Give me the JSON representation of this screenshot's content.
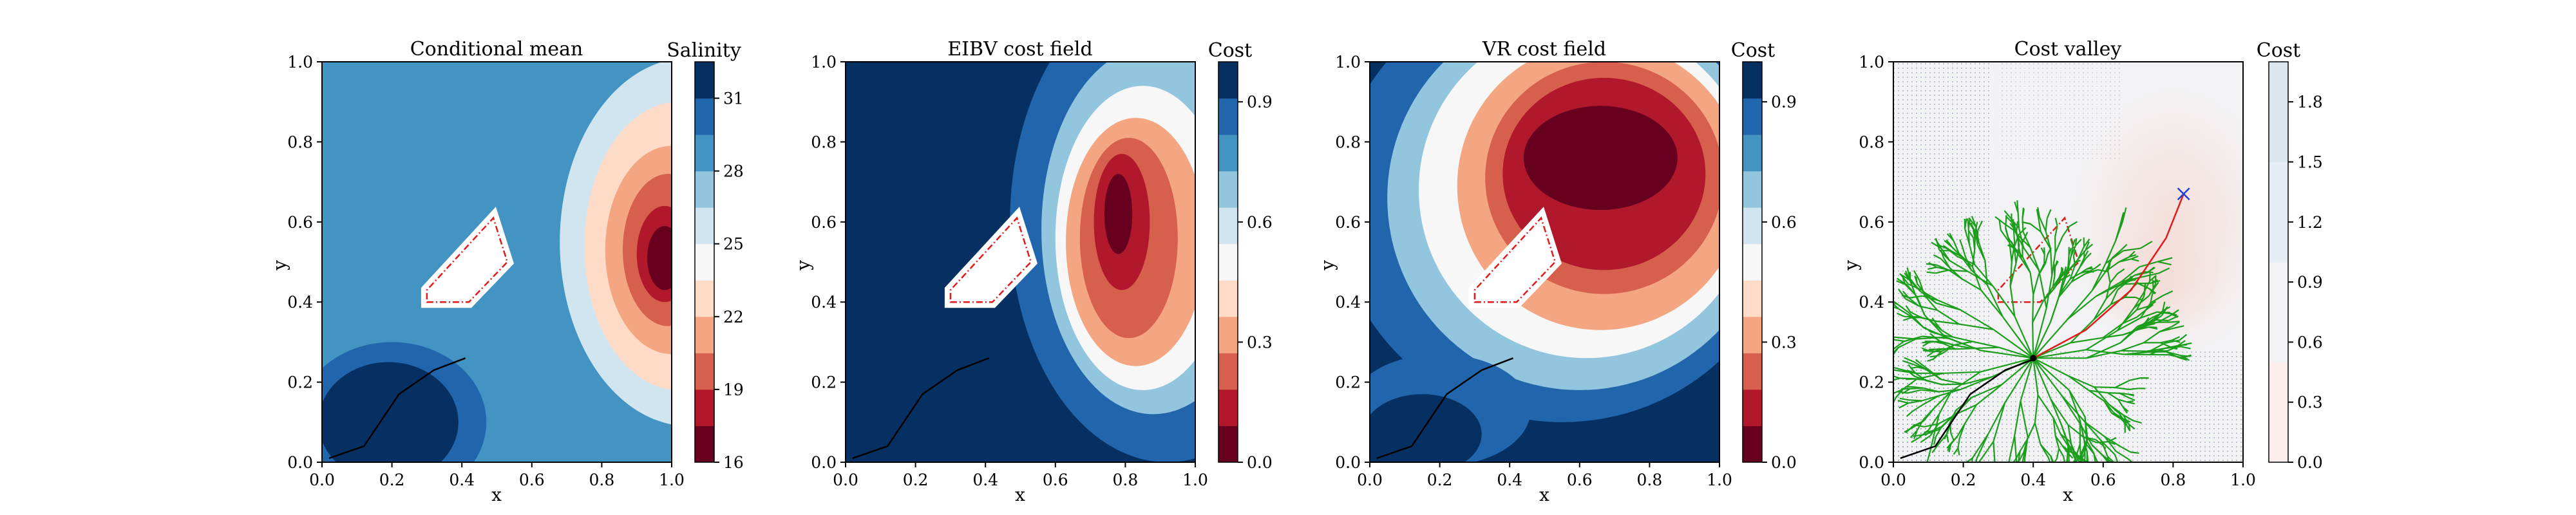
{
  "chart_data": [
    {
      "type": "heatmap",
      "title": "Conditional mean",
      "xlabel": "x",
      "ylabel": "y",
      "xlim": [
        0.0,
        1.0
      ],
      "ylim": [
        0.0,
        1.0
      ],
      "x_ticks": [
        "0.0",
        "0.2",
        "0.4",
        "0.6",
        "0.8",
        "1.0"
      ],
      "y_ticks": [
        "0.0",
        "0.2",
        "0.4",
        "0.6",
        "0.8",
        "1.0"
      ],
      "colorbar": {
        "label": "Salinity",
        "range": [
          16,
          32.5
        ],
        "ticks": [
          {
            "value": 16,
            "label": "16"
          },
          {
            "value": 19,
            "label": "19"
          },
          {
            "value": 22,
            "label": "22"
          },
          {
            "value": 25,
            "label": "25"
          },
          {
            "value": 28,
            "label": "28"
          },
          {
            "value": 31,
            "label": "31"
          }
        ],
        "colors": [
          "#67001f",
          "#b2182b",
          "#d6604d",
          "#f4a582",
          "#fddbc7",
          "#f7f7f7",
          "#d1e5f0",
          "#92c5de",
          "#4393c3",
          "#2166ac",
          "#053061"
        ]
      },
      "levels": [
        {
          "color": "#4393c3",
          "description": "background"
        },
        {
          "color": "#d1e5f0",
          "center": [
            1.05,
            0.55
          ],
          "radii": [
            0.37,
            0.46
          ]
        },
        {
          "color": "#fddbc7",
          "center": [
            1.02,
            0.54
          ],
          "radii": [
            0.27,
            0.36
          ]
        },
        {
          "color": "#f4a582",
          "center": [
            1.0,
            0.53
          ],
          "radii": [
            0.19,
            0.26
          ]
        },
        {
          "color": "#d6604d",
          "center": [
            0.99,
            0.53
          ],
          "radii": [
            0.13,
            0.19
          ]
        },
        {
          "color": "#b2182b",
          "center": [
            0.98,
            0.52
          ],
          "radii": [
            0.08,
            0.12
          ]
        },
        {
          "color": "#67001f",
          "center": [
            0.98,
            0.51
          ],
          "radii": [
            0.05,
            0.08
          ]
        }
      ],
      "path": [
        [
          0.02,
          0.01
        ],
        [
          0.12,
          0.04
        ],
        [
          0.22,
          0.17
        ],
        [
          0.32,
          0.23
        ],
        [
          0.41,
          0.26
        ]
      ]
    },
    {
      "type": "heatmap",
      "title": "EIBV cost field",
      "xlabel": "x",
      "ylabel": "y",
      "xlim": [
        0.0,
        1.0
      ],
      "ylim": [
        0.0,
        1.0
      ],
      "x_ticks": [
        "0.0",
        "0.2",
        "0.4",
        "0.6",
        "0.8",
        "1.0"
      ],
      "y_ticks": [
        "0.0",
        "0.2",
        "0.4",
        "0.6",
        "0.8",
        "1.0"
      ],
      "colorbar": {
        "label": "Cost",
        "range": [
          0.0,
          1.0
        ],
        "ticks": [
          {
            "value": 0.0,
            "label": "0.0"
          },
          {
            "value": 0.3,
            "label": "0.3"
          },
          {
            "value": 0.6,
            "label": "0.6"
          },
          {
            "value": 0.9,
            "label": "0.9"
          }
        ],
        "colors": [
          "#67001f",
          "#b2182b",
          "#d6604d",
          "#f4a582",
          "#fddbc7",
          "#f7f7f7",
          "#d1e5f0",
          "#92c5de",
          "#4393c3",
          "#2166ac",
          "#053061"
        ]
      },
      "levels": [
        {
          "color": "#053061",
          "description": "background"
        },
        {
          "color": "#2166ac",
          "center": [
            0.92,
            0.6
          ],
          "radii": [
            0.45,
            0.6
          ]
        },
        {
          "color": "#92c5de",
          "center": [
            0.88,
            0.58
          ],
          "radii": [
            0.32,
            0.46
          ]
        },
        {
          "color": "#f7f7f7",
          "center": [
            0.85,
            0.56
          ],
          "radii": [
            0.25,
            0.38
          ]
        },
        {
          "color": "#f4a582",
          "center": [
            0.83,
            0.55
          ],
          "radii": [
            0.2,
            0.31
          ]
        },
        {
          "color": "#d6604d",
          "center": [
            0.81,
            0.56
          ],
          "radii": [
            0.14,
            0.25
          ]
        },
        {
          "color": "#b2182b",
          "center": [
            0.79,
            0.6
          ],
          "radii": [
            0.08,
            0.17
          ]
        },
        {
          "color": "#67001f",
          "center": [
            0.78,
            0.62
          ],
          "radii": [
            0.04,
            0.1
          ]
        }
      ],
      "path": [
        [
          0.02,
          0.01
        ],
        [
          0.12,
          0.04
        ],
        [
          0.22,
          0.17
        ],
        [
          0.32,
          0.23
        ],
        [
          0.41,
          0.26
        ]
      ]
    },
    {
      "type": "heatmap",
      "title": "VR cost field",
      "xlabel": "x",
      "ylabel": "y",
      "xlim": [
        0.0,
        1.0
      ],
      "ylim": [
        0.0,
        1.0
      ],
      "x_ticks": [
        "0.0",
        "0.2",
        "0.4",
        "0.6",
        "0.8",
        "1.0"
      ],
      "y_ticks": [
        "0.0",
        "0.2",
        "0.4",
        "0.6",
        "0.8",
        "1.0"
      ],
      "colorbar": {
        "label": "Cost",
        "range": [
          0.0,
          1.0
        ],
        "ticks": [
          {
            "value": 0.0,
            "label": "0.0"
          },
          {
            "value": 0.3,
            "label": "0.3"
          },
          {
            "value": 0.6,
            "label": "0.6"
          },
          {
            "value": 0.9,
            "label": "0.9"
          }
        ],
        "colors": [
          "#67001f",
          "#b2182b",
          "#d6604d",
          "#f4a582",
          "#fddbc7",
          "#f7f7f7",
          "#d1e5f0",
          "#92c5de",
          "#4393c3",
          "#2166ac",
          "#053061"
        ]
      },
      "levels": [
        {
          "color": "#053061",
          "description": "background"
        },
        {
          "color": "#2166ac",
          "center": [
            0.55,
            0.65
          ],
          "radii": [
            0.65,
            0.55
          ]
        },
        {
          "color": "#92c5de",
          "center": [
            0.6,
            0.66
          ],
          "radii": [
            0.55,
            0.48
          ]
        },
        {
          "color": "#f7f7f7",
          "center": [
            0.62,
            0.68
          ],
          "radii": [
            0.48,
            0.42
          ]
        },
        {
          "color": "#f4a582",
          "center": [
            0.66,
            0.69
          ],
          "radii": [
            0.41,
            0.36
          ]
        },
        {
          "color": "#d6604d",
          "center": [
            0.67,
            0.71
          ],
          "radii": [
            0.34,
            0.29
          ]
        },
        {
          "color": "#b2182b",
          "center": [
            0.67,
            0.72
          ],
          "radii": [
            0.29,
            0.24
          ]
        },
        {
          "color": "#67001f",
          "center": [
            0.66,
            0.76
          ],
          "radii": [
            0.22,
            0.13
          ]
        }
      ],
      "path": [
        [
          0.02,
          0.01
        ],
        [
          0.12,
          0.04
        ],
        [
          0.22,
          0.17
        ],
        [
          0.32,
          0.23
        ],
        [
          0.41,
          0.26
        ]
      ]
    },
    {
      "type": "heatmap",
      "title": "Cost valley",
      "xlabel": "x",
      "ylabel": "y",
      "xlim": [
        0.0,
        1.0
      ],
      "ylim": [
        0.0,
        1.0
      ],
      "x_ticks": [
        "0.0",
        "0.2",
        "0.4",
        "0.6",
        "0.8",
        "1.0"
      ],
      "y_ticks": [
        "0.0",
        "0.2",
        "0.4",
        "0.6",
        "0.8",
        "1.0"
      ],
      "colorbar": {
        "label": "Cost",
        "range": [
          0.0,
          2.0
        ],
        "ticks": [
          {
            "value": 0.0,
            "label": "0.0"
          },
          {
            "value": 0.3,
            "label": "0.3"
          },
          {
            "value": 0.6,
            "label": "0.6"
          },
          {
            "value": 0.9,
            "label": "0.9"
          },
          {
            "value": 1.2,
            "label": "1.2"
          },
          {
            "value": 1.5,
            "label": "1.5"
          },
          {
            "value": 1.8,
            "label": "1.8"
          }
        ],
        "colors": [
          "#fbeeed",
          "#f3f3f5",
          "#e6edf4",
          "#dbe6ef"
        ]
      },
      "tree_root": [
        0.4,
        0.26
      ],
      "best_path": [
        [
          0.4,
          0.26
        ],
        [
          0.55,
          0.33
        ],
        [
          0.68,
          0.43
        ],
        [
          0.78,
          0.56
        ],
        [
          0.83,
          0.67
        ]
      ],
      "target": [
        0.83,
        0.67
      ],
      "path": [
        [
          0.02,
          0.01
        ],
        [
          0.12,
          0.04
        ],
        [
          0.22,
          0.17
        ],
        [
          0.32,
          0.23
        ],
        [
          0.41,
          0.26
        ]
      ]
    }
  ],
  "obstacle": [
    [
      0.3,
      0.4
    ],
    [
      0.42,
      0.4
    ],
    [
      0.53,
      0.5
    ],
    [
      0.49,
      0.61
    ],
    [
      0.3,
      0.43
    ]
  ],
  "colors": {
    "obstacle_edge": "#e31a1c",
    "path": "#000000",
    "tree": "#1b9e1b",
    "best_path": "#e31a1c",
    "target": "#1f3fd6",
    "grid_dots": "#8a9bb0"
  }
}
